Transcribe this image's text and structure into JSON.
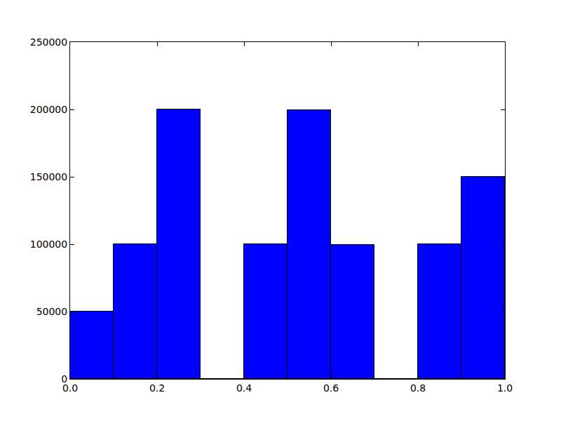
{
  "chart_data": {
    "type": "histogram",
    "bins": [
      0.0,
      0.1,
      0.2,
      0.3,
      0.4,
      0.5,
      0.6,
      0.7,
      0.8,
      0.9,
      1.0
    ],
    "values": [
      50000,
      100000,
      200000,
      0,
      100000,
      199500,
      99500,
      0,
      99800,
      150000
    ],
    "color": "#0000ff",
    "xlim": [
      0,
      1
    ],
    "xticks": [
      {
        "value": 0,
        "label": "0.0"
      },
      0.2,
      0.4,
      0.6,
      0.8,
      {
        "value": 1,
        "label": "1.0"
      }
    ],
    "ylim": [
      0,
      250000
    ],
    "yticks": [
      0,
      50000,
      100000,
      150000,
      200000,
      250000
    ],
    "grid": false
  }
}
